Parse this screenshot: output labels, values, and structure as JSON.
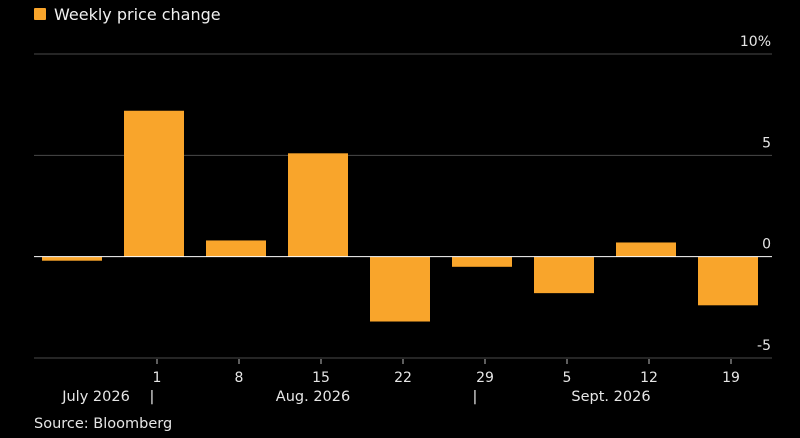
{
  "legend": {
    "label": "Weekly price change",
    "color": "#f9a52b"
  },
  "source": "Source: Bloomberg",
  "chart_data": {
    "type": "bar",
    "categories": [
      "",
      "1",
      "8",
      "15",
      "22",
      "29",
      "5",
      "12",
      "19"
    ],
    "series": [
      {
        "name": "Weekly price change",
        "values": [
          -0.2,
          7.2,
          0.8,
          5.1,
          -3.2,
          -0.5,
          -1.8,
          0.7,
          -2.4
        ]
      }
    ],
    "ylim": [
      -5,
      10
    ],
    "yticks": [
      {
        "value": 10,
        "label": "10%"
      },
      {
        "value": 5,
        "label": "5"
      },
      {
        "value": 0,
        "label": "0"
      },
      {
        "value": -5,
        "label": "-5"
      }
    ],
    "months": [
      {
        "label": "July 2026"
      },
      {
        "label": "Aug. 2026"
      },
      {
        "label": "Sept. 2026"
      }
    ],
    "month_separator": "|",
    "bar_color": "#f9a52b",
    "grid": true,
    "legend_position": "top-left"
  }
}
